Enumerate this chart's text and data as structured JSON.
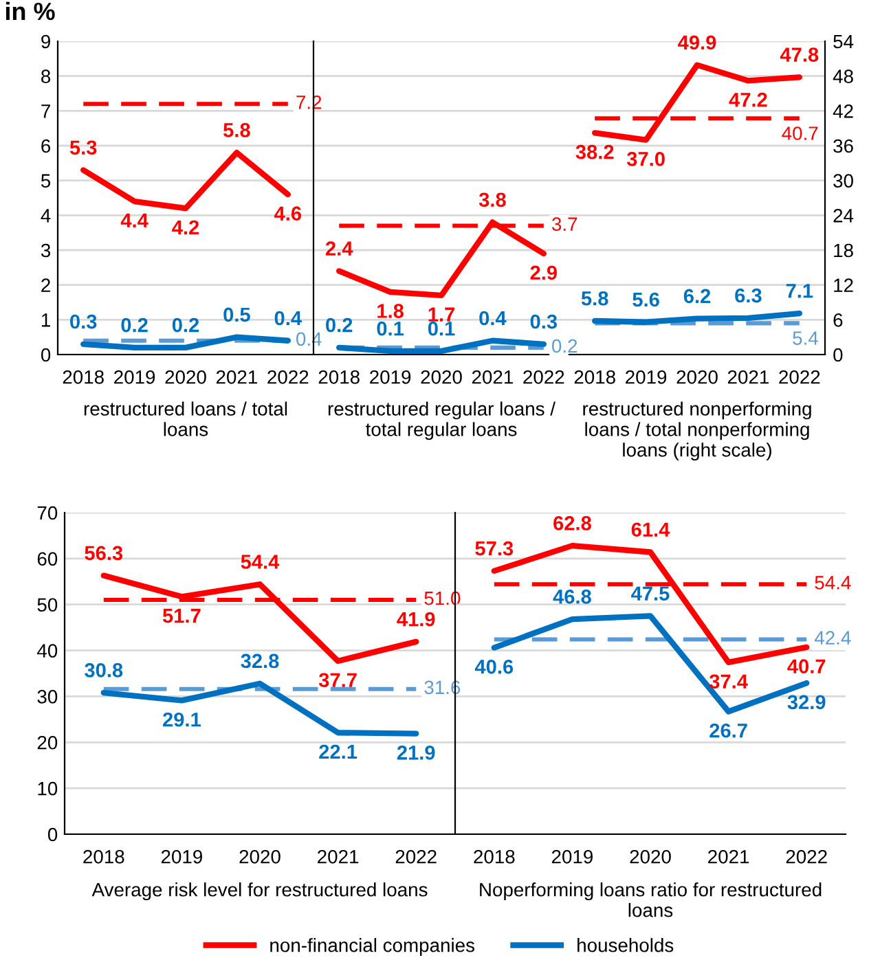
{
  "chart_data": [
    {
      "type": "line",
      "title": "in %",
      "xlabel": "restructured loans / total loans",
      "categories": [
        "2018",
        "2019",
        "2020",
        "2021",
        "2022"
      ],
      "ylim": [
        0,
        9
      ],
      "yticks": [
        0,
        1,
        2,
        3,
        4,
        5,
        6,
        7,
        8,
        9
      ],
      "grid": "y",
      "data_labels": true,
      "series": [
        {
          "color": "#ff0000",
          "values": [
            5.3,
            4.4,
            4.2,
            5.8,
            4.6
          ]
        },
        {
          "color": "#0070c0",
          "values": [
            0.3,
            0.2,
            0.2,
            0.5,
            0.4
          ]
        }
      ],
      "ref_lines": [
        {
          "axis": "y",
          "value": 7.2,
          "label": "7.2",
          "color": "#ff0000",
          "line_style": "dashed"
        },
        {
          "axis": "y",
          "value": 0.4,
          "label": "0.4",
          "color": "#5b9bd5",
          "line_style": "dashed"
        }
      ]
    },
    {
      "type": "line",
      "xlabel": "restructured regular loans / total regular loans",
      "categories": [
        "2018",
        "2019",
        "2020",
        "2021",
        "2022"
      ],
      "ylim": [
        0,
        9
      ],
      "yticks": [
        0,
        1,
        2,
        3,
        4,
        5,
        6,
        7,
        8,
        9
      ],
      "tick_labels": "x",
      "grid": "y",
      "data_labels": true,
      "series": [
        {
          "color": "#ff0000",
          "values": [
            2.4,
            1.8,
            1.7,
            3.8,
            2.9
          ]
        },
        {
          "color": "#0070c0",
          "values": [
            0.2,
            0.1,
            0.1,
            0.4,
            0.3
          ]
        }
      ],
      "ref_lines": [
        {
          "axis": "y",
          "value": 3.7,
          "label": "3.7",
          "color": "#ff0000",
          "line_style": "dashed"
        },
        {
          "axis": "y",
          "value": 0.2,
          "label": "0.2",
          "color": "#5b9bd5",
          "line_style": "dashed"
        }
      ]
    },
    {
      "type": "line",
      "xlabel": "restructured nonperforming loans / total nonperforming loans (right scale)",
      "categories": [
        "2018",
        "2019",
        "2020",
        "2021",
        "2022"
      ],
      "y2lim": [
        0,
        54
      ],
      "y2ticks": [
        0,
        6,
        12,
        18,
        24,
        30,
        36,
        42,
        48,
        54
      ],
      "grid": "y",
      "data_labels": true,
      "series": [
        {
          "color": "#ff0000",
          "axis": "y2",
          "values": [
            38.2,
            37.0,
            49.9,
            47.2,
            47.8
          ],
          "value_labels": [
            "38.2",
            "37.0",
            "49.9",
            "47.2",
            "47.8"
          ]
        },
        {
          "color": "#0070c0",
          "axis": "y2",
          "values": [
            5.8,
            5.6,
            6.2,
            6.3,
            7.1
          ]
        }
      ],
      "ref_lines": [
        {
          "axis": "y2",
          "value": 40.7,
          "label": "40.7",
          "color": "#ff0000",
          "line_style": "dashed"
        },
        {
          "axis": "y2",
          "value": 5.4,
          "label": "5.4",
          "color": "#5b9bd5",
          "line_style": "dashed"
        }
      ]
    },
    {
      "type": "line",
      "xlabel": "Average risk level for restructured loans",
      "categories": [
        "2018",
        "2019",
        "2020",
        "2021",
        "2022"
      ],
      "ylim": [
        0,
        70
      ],
      "yticks": [
        0,
        10,
        20,
        30,
        40,
        50,
        60,
        70
      ],
      "grid": "y",
      "data_labels": true,
      "series": [
        {
          "color": "#ff0000",
          "values": [
            56.3,
            51.7,
            54.4,
            37.7,
            41.9
          ]
        },
        {
          "color": "#0070c0",
          "values": [
            30.8,
            29.1,
            32.8,
            22.1,
            21.9
          ]
        }
      ],
      "ref_lines": [
        {
          "axis": "y",
          "value": 51.0,
          "label": "51.0",
          "color": "#ff0000",
          "line_style": "dashed"
        },
        {
          "axis": "y",
          "value": 31.6,
          "label": "31.6",
          "color": "#5b9bd5",
          "line_style": "dashed"
        }
      ]
    },
    {
      "type": "line",
      "xlabel": "Noperforming loans ratio for restructured loans",
      "categories": [
        "2018",
        "2019",
        "2020",
        "2021",
        "2022"
      ],
      "ylim": [
        0,
        70
      ],
      "yticks": [
        0,
        10,
        20,
        30,
        40,
        50,
        60,
        70
      ],
      "tick_labels": "x",
      "grid": "y",
      "data_labels": true,
      "legend": "bottom",
      "series": [
        {
          "name": "non-financial companies",
          "color": "#ff0000",
          "values": [
            57.3,
            62.8,
            61.4,
            37.4,
            40.7
          ]
        },
        {
          "name": "households",
          "color": "#0070c0",
          "values": [
            40.6,
            46.8,
            47.5,
            26.7,
            32.9
          ]
        }
      ],
      "ref_lines": [
        {
          "axis": "y",
          "value": 54.4,
          "label": "54.4",
          "color": "#ff0000",
          "line_style": "dashed"
        },
        {
          "axis": "y",
          "value": 42.4,
          "label": "42.4",
          "color": "#5b9bd5",
          "line_style": "dashed"
        }
      ]
    }
  ]
}
